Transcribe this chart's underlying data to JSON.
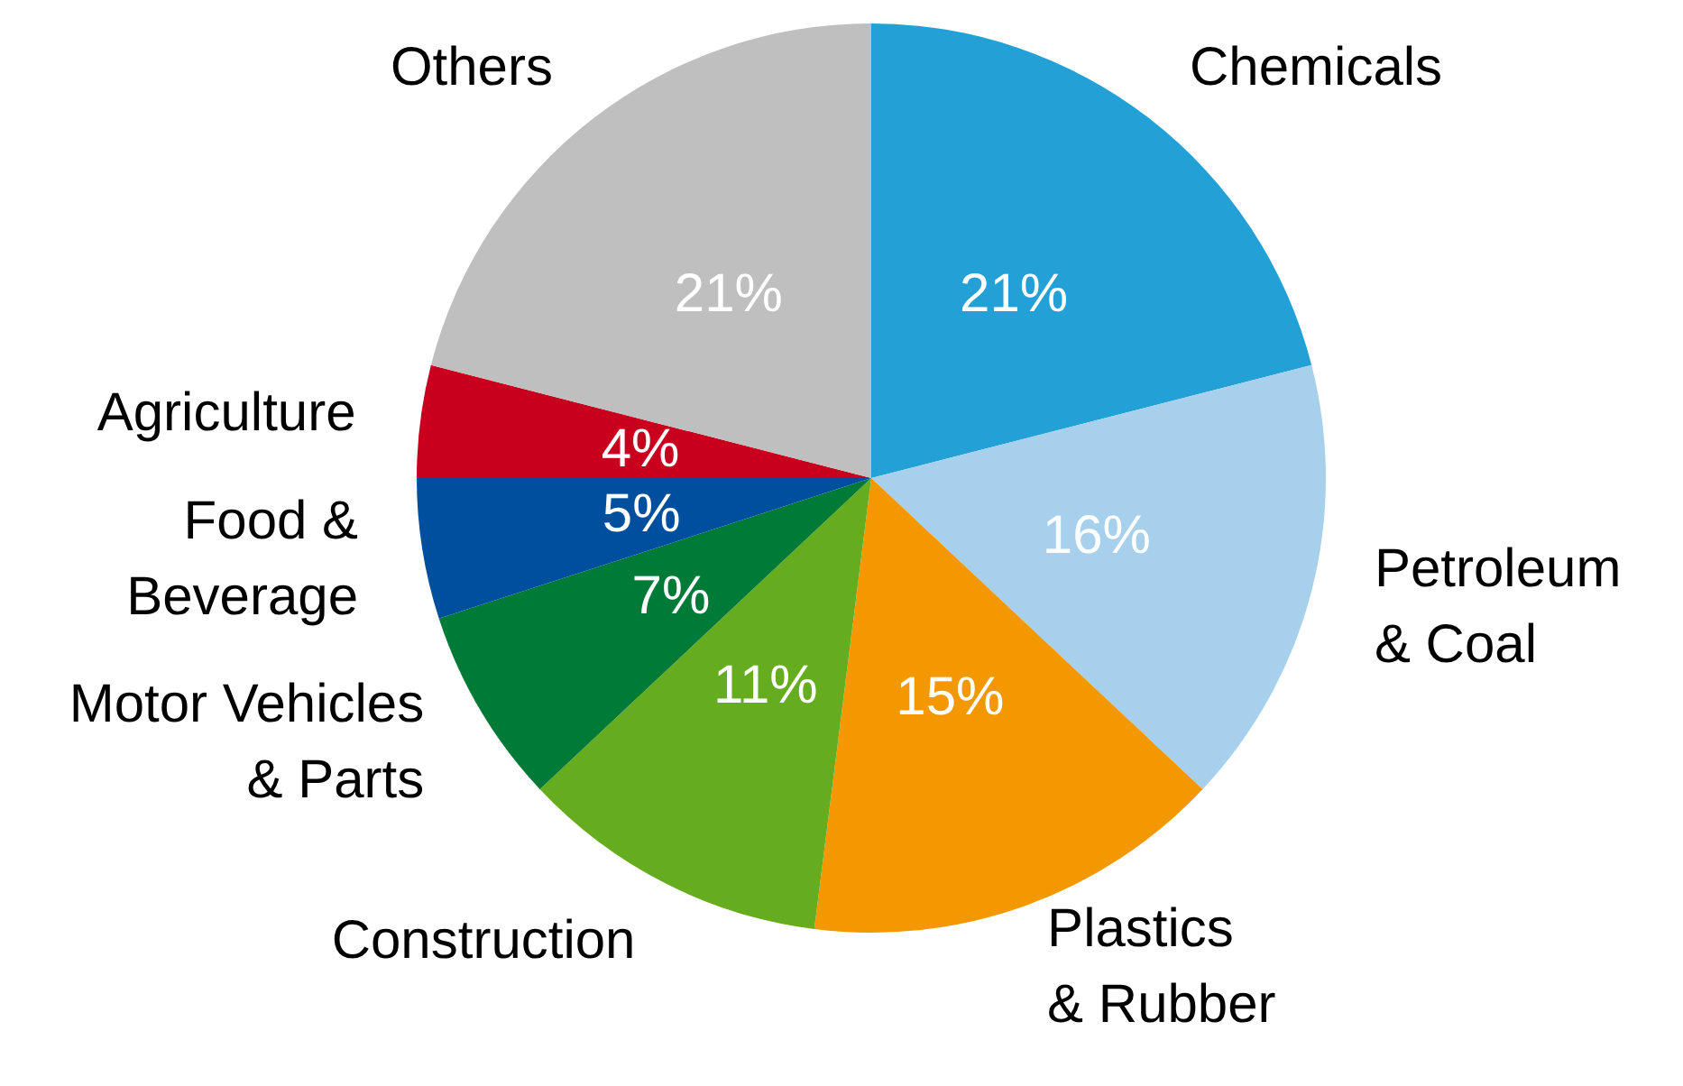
{
  "chart_data": {
    "type": "pie",
    "categories": [
      "Chemicals",
      "Petroleum\n& Coal",
      "Plastics\n& Rubber",
      "Construction",
      "Motor Vehicles\n& Parts",
      "Food &\nBeverage",
      "Agriculture",
      "Others"
    ],
    "values": [
      21,
      16,
      15,
      11,
      7,
      5,
      4,
      21
    ],
    "value_labels": [
      "21%",
      "16%",
      "15%",
      "11%",
      "7%",
      "5%",
      "4%",
      "21%"
    ],
    "colors": [
      "#23a0d5",
      "#a6d0ec",
      "#f39800",
      "#65ac1e",
      "#007a37",
      "#004f9f",
      "#c8001e",
      "#bfbfbf"
    ],
    "legend": false
  }
}
